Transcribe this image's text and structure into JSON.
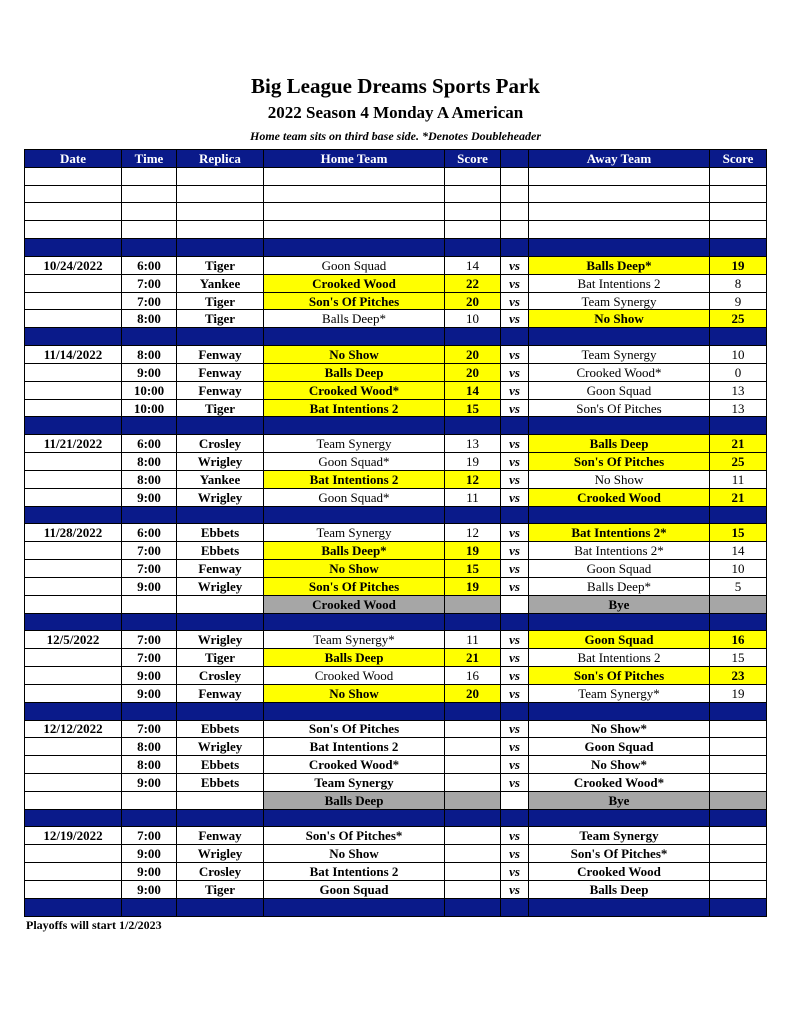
{
  "title": "Big League Dreams Sports Park",
  "subtitle": "2022 Season 4 Monday A American",
  "note": "Home team sits on third base side.  *Denotes Doubleheader",
  "columns": [
    "Date",
    "Time",
    "Replica",
    "Home Team",
    "Score",
    "",
    "Away Team",
    "Score"
  ],
  "vs_label": "vs",
  "colors": {
    "header": "#0a1a8a",
    "winner": "#ffff00",
    "bye": "#a6a6a6"
  },
  "weeks": [
    {
      "date": "10/24/2022",
      "games": [
        {
          "time": "6:00",
          "replica": "Tiger",
          "home": "Goon Squad",
          "hs": "14",
          "away": "Balls Deep*",
          "as": "19",
          "winner": "away"
        },
        {
          "time": "7:00",
          "replica": "Yankee",
          "home": "Crooked Wood",
          "hs": "22",
          "away": "Bat Intentions 2",
          "as": "8",
          "winner": "home"
        },
        {
          "time": "7:00",
          "replica": "Tiger",
          "home": "Son's Of Pitches",
          "hs": "20",
          "away": "Team Synergy",
          "as": "9",
          "winner": "home"
        },
        {
          "time": "8:00",
          "replica": "Tiger",
          "home": "Balls Deep*",
          "hs": "10",
          "away": "No Show",
          "as": "25",
          "winner": "away"
        }
      ]
    },
    {
      "date": "11/14/2022",
      "games": [
        {
          "time": "8:00",
          "replica": "Fenway",
          "home": "No Show",
          "hs": "20",
          "away": "Team Synergy",
          "as": "10",
          "winner": "home"
        },
        {
          "time": "9:00",
          "replica": "Fenway",
          "home": "Balls Deep",
          "hs": "20",
          "away": "Crooked Wood*",
          "as": "0",
          "winner": "home"
        },
        {
          "time": "10:00",
          "replica": "Fenway",
          "home": "Crooked Wood*",
          "hs": "14",
          "away": "Goon Squad",
          "as": "13",
          "winner": "home"
        },
        {
          "time": "10:00",
          "replica": "Tiger",
          "home": "Bat Intentions 2",
          "hs": "15",
          "away": "Son's Of Pitches",
          "as": "13",
          "winner": "home"
        }
      ]
    },
    {
      "date": "11/21/2022",
      "games": [
        {
          "time": "6:00",
          "replica": "Crosley",
          "home": "Team Synergy",
          "hs": "13",
          "away": "Balls Deep",
          "as": "21",
          "winner": "away"
        },
        {
          "time": "8:00",
          "replica": "Wrigley",
          "home": "Goon Squad*",
          "hs": "19",
          "away": "Son's Of Pitches",
          "as": "25",
          "winner": "away"
        },
        {
          "time": "8:00",
          "replica": "Yankee",
          "home": "Bat Intentions 2",
          "hs": "12",
          "away": "No Show",
          "as": "11",
          "winner": "home"
        },
        {
          "time": "9:00",
          "replica": "Wrigley",
          "home": "Goon Squad*",
          "hs": "11",
          "away": "Crooked Wood",
          "as": "21",
          "winner": "away"
        }
      ]
    },
    {
      "date": "11/28/2022",
      "games": [
        {
          "time": "6:00",
          "replica": "Ebbets",
          "home": "Team Synergy",
          "hs": "12",
          "away": "Bat Intentions 2*",
          "as": "15",
          "winner": "away"
        },
        {
          "time": "7:00",
          "replica": "Ebbets",
          "home": "Balls Deep*",
          "hs": "19",
          "away": "Bat Intentions 2*",
          "as": "14",
          "winner": "home"
        },
        {
          "time": "7:00",
          "replica": "Fenway",
          "home": "No Show",
          "hs": "15",
          "away": "Goon Squad",
          "as": "10",
          "winner": "home"
        },
        {
          "time": "9:00",
          "replica": "Wrigley",
          "home": "Son's Of Pitches",
          "hs": "19",
          "away": "Balls Deep*",
          "as": "5",
          "winner": "home"
        }
      ],
      "bye": {
        "team": "Crooked Wood",
        "label": "Bye"
      }
    },
    {
      "date": "12/5/2022",
      "games": [
        {
          "time": "7:00",
          "replica": "Wrigley",
          "home": "Team Synergy*",
          "hs": "11",
          "away": "Goon Squad",
          "as": "16",
          "winner": "away"
        },
        {
          "time": "7:00",
          "replica": "Tiger",
          "home": "Balls Deep",
          "hs": "21",
          "away": "Bat Intentions 2",
          "as": "15",
          "winner": "home"
        },
        {
          "time": "9:00",
          "replica": "Crosley",
          "home": "Crooked Wood",
          "hs": "16",
          "away": "Son's Of Pitches",
          "as": "23",
          "winner": "away"
        },
        {
          "time": "9:00",
          "replica": "Fenway",
          "home": "No Show",
          "hs": "20",
          "away": "Team Synergy*",
          "as": "19",
          "winner": "home"
        }
      ]
    },
    {
      "date": "12/12/2022",
      "upcoming": true,
      "games": [
        {
          "time": "7:00",
          "replica": "Ebbets",
          "home": "Son's Of Pitches",
          "hs": "",
          "away": "No Show*",
          "as": ""
        },
        {
          "time": "8:00",
          "replica": "Wrigley",
          "home": "Bat Intentions 2",
          "hs": "",
          "away": "Goon Squad",
          "as": ""
        },
        {
          "time": "8:00",
          "replica": "Ebbets",
          "home": "Crooked Wood*",
          "hs": "",
          "away": "No Show*",
          "as": ""
        },
        {
          "time": "9:00",
          "replica": "Ebbets",
          "home": "Team Synergy",
          "hs": "",
          "away": "Crooked Wood*",
          "as": ""
        }
      ],
      "bye": {
        "team": "Balls Deep",
        "label": "Bye"
      }
    },
    {
      "date": "12/19/2022",
      "upcoming": true,
      "games": [
        {
          "time": "7:00",
          "replica": "Fenway",
          "home": "Son's Of Pitches*",
          "hs": "",
          "away": "Team Synergy",
          "as": ""
        },
        {
          "time": "9:00",
          "replica": "Wrigley",
          "home": "No Show",
          "hs": "",
          "away": "Son's Of Pitches*",
          "as": ""
        },
        {
          "time": "9:00",
          "replica": "Crosley",
          "home": "Bat Intentions 2",
          "hs": "",
          "away": "Crooked Wood",
          "as": ""
        },
        {
          "time": "9:00",
          "replica": "Tiger",
          "home": "Goon Squad",
          "hs": "",
          "away": "Balls Deep",
          "as": ""
        }
      ]
    }
  ],
  "footer": "Playoffs will start 1/2/2023"
}
